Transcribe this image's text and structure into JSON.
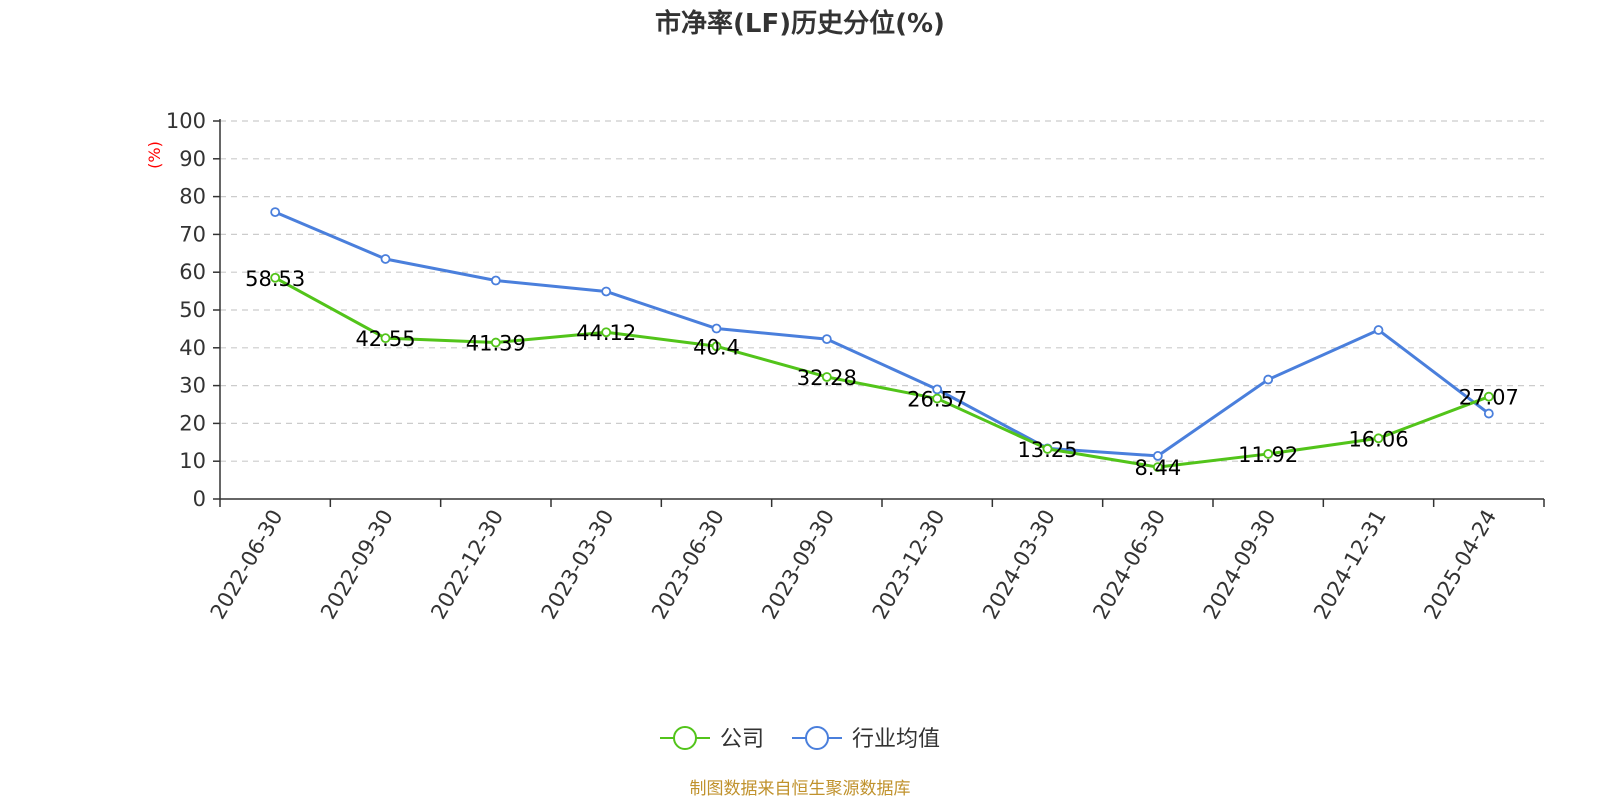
{
  "chart_data": {
    "type": "line",
    "title": "市净率(LF)历史分位(%)",
    "ylabel": "(%)",
    "xlabel": "",
    "ylim": [
      0,
      100
    ],
    "yticks": [
      0,
      10,
      20,
      30,
      40,
      50,
      60,
      70,
      80,
      90,
      100
    ],
    "grid": true,
    "legend_position": "bottom",
    "categories": [
      "2022-06-30",
      "2022-09-30",
      "2022-12-30",
      "2023-03-30",
      "2023-06-30",
      "2023-09-30",
      "2023-12-30",
      "2024-03-30",
      "2024-06-30",
      "2024-09-30",
      "2024-12-31",
      "2025-04-24"
    ],
    "series": [
      {
        "name": "公司",
        "color": "#52c41a",
        "show_labels": true,
        "values": [
          58.53,
          42.55,
          41.39,
          44.12,
          40.4,
          32.28,
          26.57,
          13.25,
          8.44,
          11.92,
          16.06,
          27.07
        ]
      },
      {
        "name": "行业均值",
        "color": "#4a7fdc",
        "show_labels": false,
        "values": [
          75.9,
          63.5,
          57.8,
          54.9,
          45.1,
          42.3,
          29.0,
          13.4,
          11.4,
          31.6,
          44.7,
          22.6
        ]
      }
    ],
    "unit_color": "#ff0000",
    "source_note": "制图数据来自恒生聚源数据库",
    "source_color": "#c0922d"
  }
}
